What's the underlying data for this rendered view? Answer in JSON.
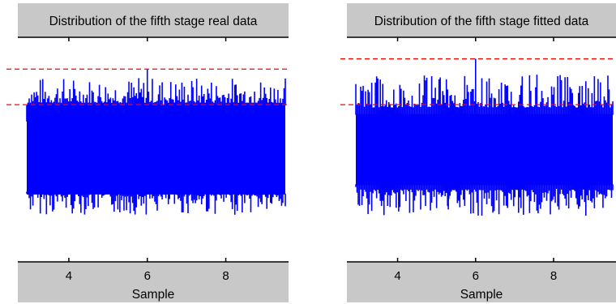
{
  "chart_data": [
    {
      "type": "line",
      "title": "Distribution of the fifth stage real data",
      "xlabel": "Sample",
      "ylabel": "",
      "xlim": [
        2.7,
        9.6
      ],
      "xticks": [
        4,
        6,
        8
      ],
      "ylim": [
        -1.2,
        1.2
      ],
      "series": [
        {
          "color": "#0000ff",
          "description": "dense noise signal",
          "core_band": [
            -0.48,
            0.48
          ],
          "typical_peak_range": [
            0.5,
            0.78
          ],
          "max_value": 0.86,
          "min_value": -0.67,
          "values": [
            0.3,
            -0.45,
            0.55,
            -0.4,
            0.52,
            -0.5,
            0.48,
            -0.53,
            0.6,
            -0.44,
            0.62,
            -0.55,
            0.5,
            -0.58,
            0.55,
            -0.47,
            0.86,
            -0.6,
            0.55,
            -0.5,
            0.58,
            -0.62,
            0.66,
            -0.48,
            0.7,
            -0.55,
            0.62,
            -0.67,
            0.58,
            -0.5,
            0.65,
            -0.55,
            0.6,
            -0.48,
            0.72,
            -0.52,
            0.6,
            -0.45
          ]
        }
      ],
      "reference_lines": [
        {
          "y": 0.86,
          "color": "#ff0000",
          "style": "dashed"
        },
        {
          "y": 0.48,
          "color": "#ff0000",
          "style": "dashed"
        }
      ],
      "grid": false,
      "background": "#c8c8c8"
    },
    {
      "type": "line",
      "title": "Distribution of the fifth stage fitted data",
      "xlabel": "Sample",
      "ylabel": "",
      "xlim": [
        2.7,
        9.6
      ],
      "xticks": [
        4,
        6,
        8
      ],
      "ylim": [
        -1.2,
        1.2
      ],
      "series": [
        {
          "color": "#0000ff",
          "description": "dense noise signal",
          "core_band": [
            -0.38,
            0.38
          ],
          "typical_peak_range": [
            0.45,
            0.8
          ],
          "max_value": 0.97,
          "min_value": -0.64,
          "values": [
            0.7,
            -0.4,
            0.65,
            -0.55,
            0.75,
            -0.45,
            0.6,
            -0.6,
            0.8,
            -0.42,
            0.68,
            -0.5,
            0.72,
            -0.64,
            0.62,
            -0.4,
            0.78,
            -0.55,
            0.97,
            -0.48,
            0.7,
            -0.6,
            0.75,
            -0.45,
            0.82,
            -0.52,
            0.95,
            -0.5,
            0.68,
            -0.58,
            0.72,
            -0.46,
            0.9,
            -0.5,
            0.74,
            -0.55,
            0.7,
            -0.44
          ]
        }
      ],
      "reference_lines": [
        {
          "y": 0.97,
          "color": "#ff0000",
          "style": "dashed"
        },
        {
          "y": 0.48,
          "color": "#ff0000",
          "style": "dashed"
        }
      ],
      "grid": false,
      "background": "#c8c8c8"
    }
  ]
}
